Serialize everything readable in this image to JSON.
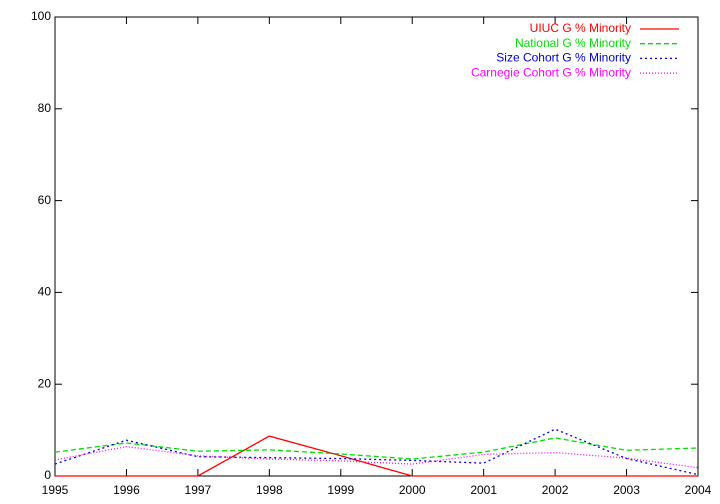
{
  "chart_data": {
    "type": "line",
    "x": [
      1995,
      1996,
      1997,
      1998,
      1999,
      2000,
      2001,
      2002,
      2003,
      2004
    ],
    "series": [
      {
        "name": "UIUC G % Minority",
        "color": "#ff0000",
        "values": [
          0,
          0,
          0,
          8.7,
          4.4,
          0,
          0,
          0,
          0,
          0
        ]
      },
      {
        "name": "National G % Minority",
        "color": "#00dd00",
        "values": [
          5.2,
          7.2,
          5.4,
          5.7,
          4.8,
          3.7,
          5.2,
          8.3,
          5.6,
          6.1
        ]
      },
      {
        "name": "Size Cohort G % Minority",
        "color": "#0000cc",
        "values": [
          2.6,
          7.8,
          4.2,
          4.0,
          3.8,
          3.4,
          2.8,
          10.2,
          3.8,
          0.3
        ]
      },
      {
        "name": "Carnegie Cohort G % Minority",
        "color": "#ff00ff",
        "values": [
          3.5,
          6.4,
          4.4,
          3.7,
          3.3,
          2.6,
          4.7,
          5.1,
          3.9,
          1.8
        ]
      }
    ],
    "xlim": [
      1995,
      2004
    ],
    "xticks": [
      1995,
      1996,
      1997,
      1998,
      1999,
      2000,
      2001,
      2002,
      2003,
      2004
    ],
    "ylim": [
      0,
      100
    ],
    "yticks": [
      0,
      20,
      40,
      60,
      80,
      100
    ],
    "grid": false,
    "legend": "top-right"
  }
}
